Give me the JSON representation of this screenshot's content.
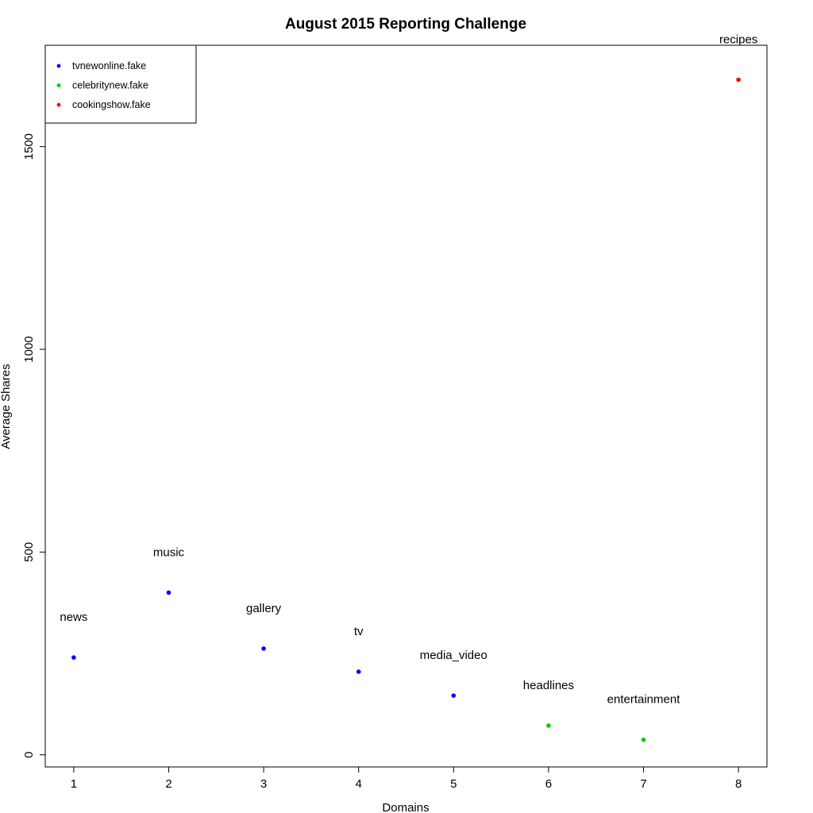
{
  "chart_data": {
    "type": "scatter",
    "title": "August 2015 Reporting Challenge",
    "xlabel": "Domains",
    "ylabel": "Average Shares",
    "xlim": [
      0.7,
      8.3
    ],
    "ylim": [
      -30,
      1750
    ],
    "x_ticks": [
      1,
      2,
      3,
      4,
      5,
      6,
      7,
      8
    ],
    "y_ticks": [
      0,
      500,
      1000,
      1500
    ],
    "grid": false,
    "legend_position": "top-left",
    "legend": [
      {
        "label": "tvnewonline.fake",
        "color": "#0000ff"
      },
      {
        "label": "celebritynew.fake",
        "color": "#00cd00"
      },
      {
        "label": "cookingshow.fake",
        "color": "#ff0000"
      }
    ],
    "points": [
      {
        "x": 1,
        "y": 240,
        "label": "news",
        "color": "#0000ff"
      },
      {
        "x": 2,
        "y": 400,
        "label": "music",
        "color": "#0000ff"
      },
      {
        "x": 3,
        "y": 262,
        "label": "gallery",
        "color": "#0000ff"
      },
      {
        "x": 4,
        "y": 205,
        "label": "tv",
        "color": "#0000ff"
      },
      {
        "x": 5,
        "y": 146,
        "label": "media_video",
        "color": "#0000ff"
      },
      {
        "x": 6,
        "y": 72,
        "label": "headlines",
        "color": "#00cd00"
      },
      {
        "x": 7,
        "y": 37,
        "label": "entertainment",
        "color": "#00cd00"
      },
      {
        "x": 8,
        "y": 1665,
        "label": "recipes",
        "color": "#ff0000"
      }
    ]
  }
}
